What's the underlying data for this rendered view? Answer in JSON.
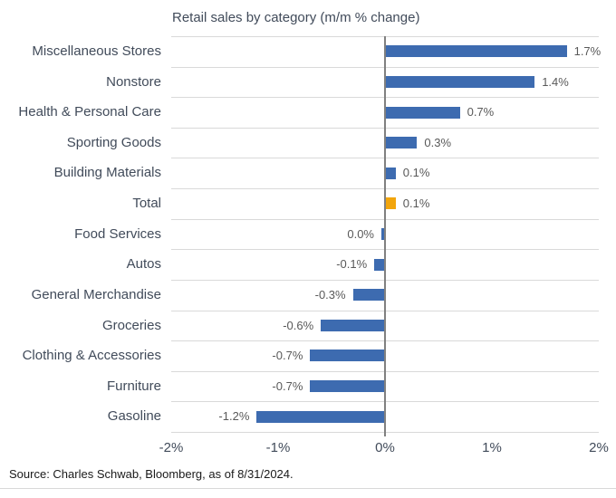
{
  "chart_data": {
    "type": "bar",
    "orientation": "horizontal",
    "title": "Retail sales by category (m/m % change)",
    "categories": [
      "Miscellaneous Stores",
      "Nonstore",
      "Health & Personal Care",
      "Sporting Goods",
      "Building Materials",
      "Total",
      "Food Services",
      "Autos",
      "General Merchandise",
      "Groceries",
      "Clothing & Accessories",
      "Furniture",
      "Gasoline"
    ],
    "values": [
      1.7,
      1.4,
      0.7,
      0.3,
      0.1,
      0.1,
      0.0,
      -0.1,
      -0.3,
      -0.6,
      -0.7,
      -0.7,
      -1.2
    ],
    "value_labels": [
      "1.7%",
      "1.4%",
      "0.7%",
      "0.3%",
      "0.1%",
      "0.1%",
      "0.0%",
      "-0.1%",
      "-0.3%",
      "-0.6%",
      "-0.7%",
      "-0.7%",
      "-1.2%"
    ],
    "highlight_category": "Total",
    "xlim": [
      -2,
      2
    ],
    "x_ticks": [
      "-2%",
      "-1%",
      "0%",
      "1%",
      "2%"
    ],
    "grid": "horizontal row separators only",
    "legend": "none",
    "colors": {
      "bar": "#3d6bb0",
      "highlight": "#f2a50c",
      "gridline": "#d9d9d9",
      "zero_line": "#808080",
      "title_text": "#414b5a",
      "category_text": "#414b5a",
      "tick_text": "#414b5a",
      "value_text": "#595959",
      "source_text": "#1a1a1a"
    }
  },
  "source": "Source: Charles Schwab, Bloomberg, as of 8/31/2024."
}
